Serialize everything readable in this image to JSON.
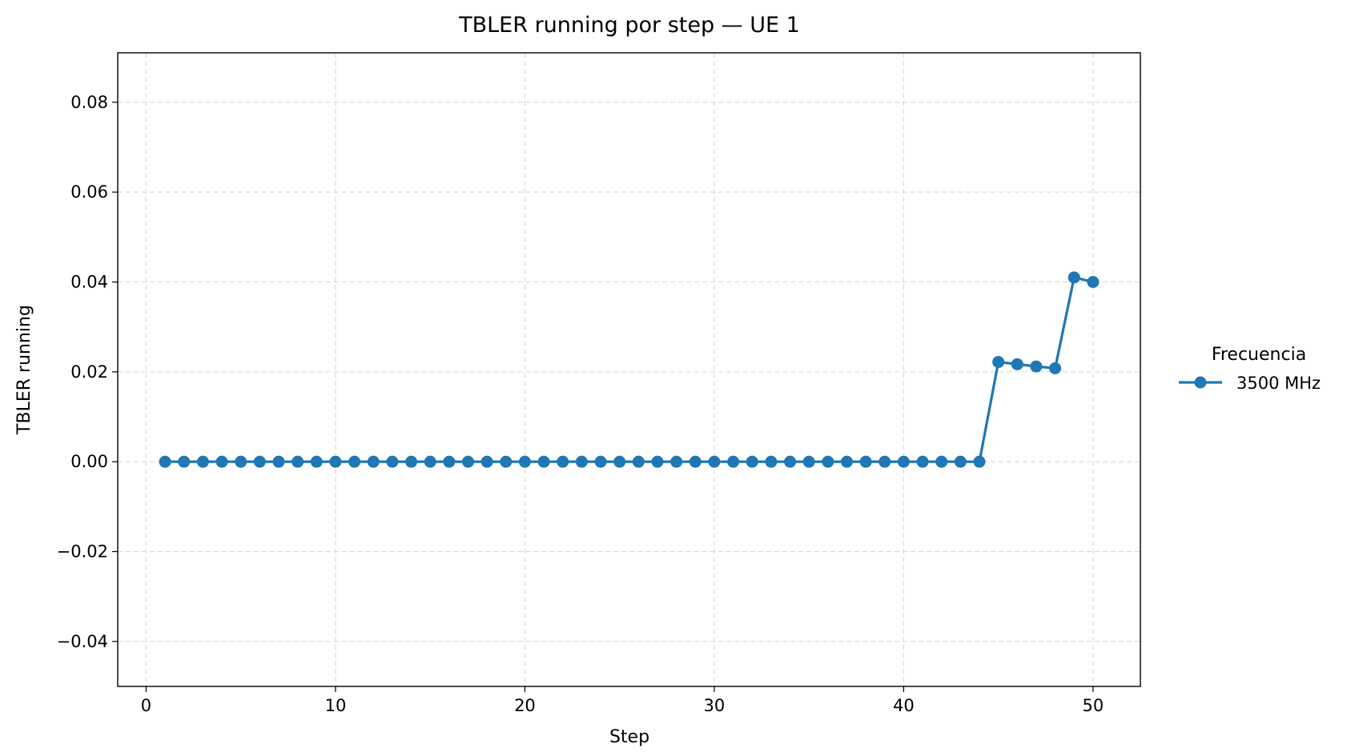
{
  "chart_data": {
    "type": "line",
    "title": "TBLER running por step — UE 1",
    "xlabel": "Step",
    "ylabel": "TBLER running",
    "xlim": [
      -1.5,
      52.5
    ],
    "ylim": [
      -0.05,
      0.091
    ],
    "x_ticks": [
      0,
      10,
      20,
      30,
      40,
      50
    ],
    "x_tick_labels": [
      "0",
      "10",
      "20",
      "30",
      "40",
      "50"
    ],
    "y_ticks": [
      -0.04,
      -0.02,
      0.0,
      0.02,
      0.04,
      0.06,
      0.08
    ],
    "y_tick_labels": [
      "−0.04",
      "−0.02",
      "0.00",
      "0.02",
      "0.04",
      "0.06",
      "0.08"
    ],
    "grid": true,
    "legend": {
      "title": "Frecuencia",
      "placement": "outside-right"
    },
    "series": [
      {
        "name": "3500 MHz",
        "color": "#1f77b4",
        "marker": "circle",
        "x": [
          1,
          2,
          3,
          4,
          5,
          6,
          7,
          8,
          9,
          10,
          11,
          12,
          13,
          14,
          15,
          16,
          17,
          18,
          19,
          20,
          21,
          22,
          23,
          24,
          25,
          26,
          27,
          28,
          29,
          30,
          31,
          32,
          33,
          34,
          35,
          36,
          37,
          38,
          39,
          40,
          41,
          42,
          43,
          44,
          45,
          46,
          47,
          48,
          49,
          50
        ],
        "y": [
          0,
          0,
          0,
          0,
          0,
          0,
          0,
          0,
          0,
          0,
          0,
          0,
          0,
          0,
          0,
          0,
          0,
          0,
          0,
          0,
          0,
          0,
          0,
          0,
          0,
          0,
          0,
          0,
          0,
          0,
          0,
          0,
          0,
          0,
          0,
          0,
          0,
          0,
          0,
          0,
          0,
          0,
          0,
          0,
          0.0222,
          0.0217,
          0.0212,
          0.0208,
          0.041,
          0.04
        ]
      }
    ]
  }
}
